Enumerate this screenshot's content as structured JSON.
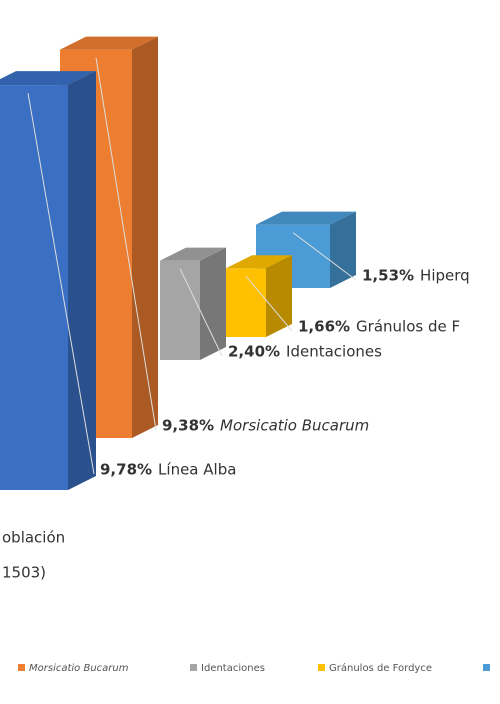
{
  "chart_data": {
    "type": "bar3d",
    "categories": [
      "Hiperq",
      "Gránulos de F",
      "Identaciones",
      "Morsicatio Bucarum",
      "Línea Alba"
    ],
    "values": [
      1.53,
      1.66,
      2.4,
      9.38,
      9.78
    ],
    "value_labels": [
      "1,53%",
      "1,66%",
      "2,40%",
      "9,38%",
      "9,78%"
    ],
    "colors": [
      "#4a9bd6",
      "#ffc000",
      "#a5a5a5",
      "#ed7d31",
      "#3a6fc4"
    ],
    "x_label": [
      "oblación",
      "1503)"
    ],
    "legend": [
      {
        "label": "Morsicatio Bucarum",
        "color": "#ed7d31"
      },
      {
        "label": "Identaciones",
        "color": "#a5a5a5"
      },
      {
        "label": "Gránulos de Fordyce",
        "color": "#ffc000"
      },
      {
        "color": "#4a9bd6"
      }
    ]
  }
}
